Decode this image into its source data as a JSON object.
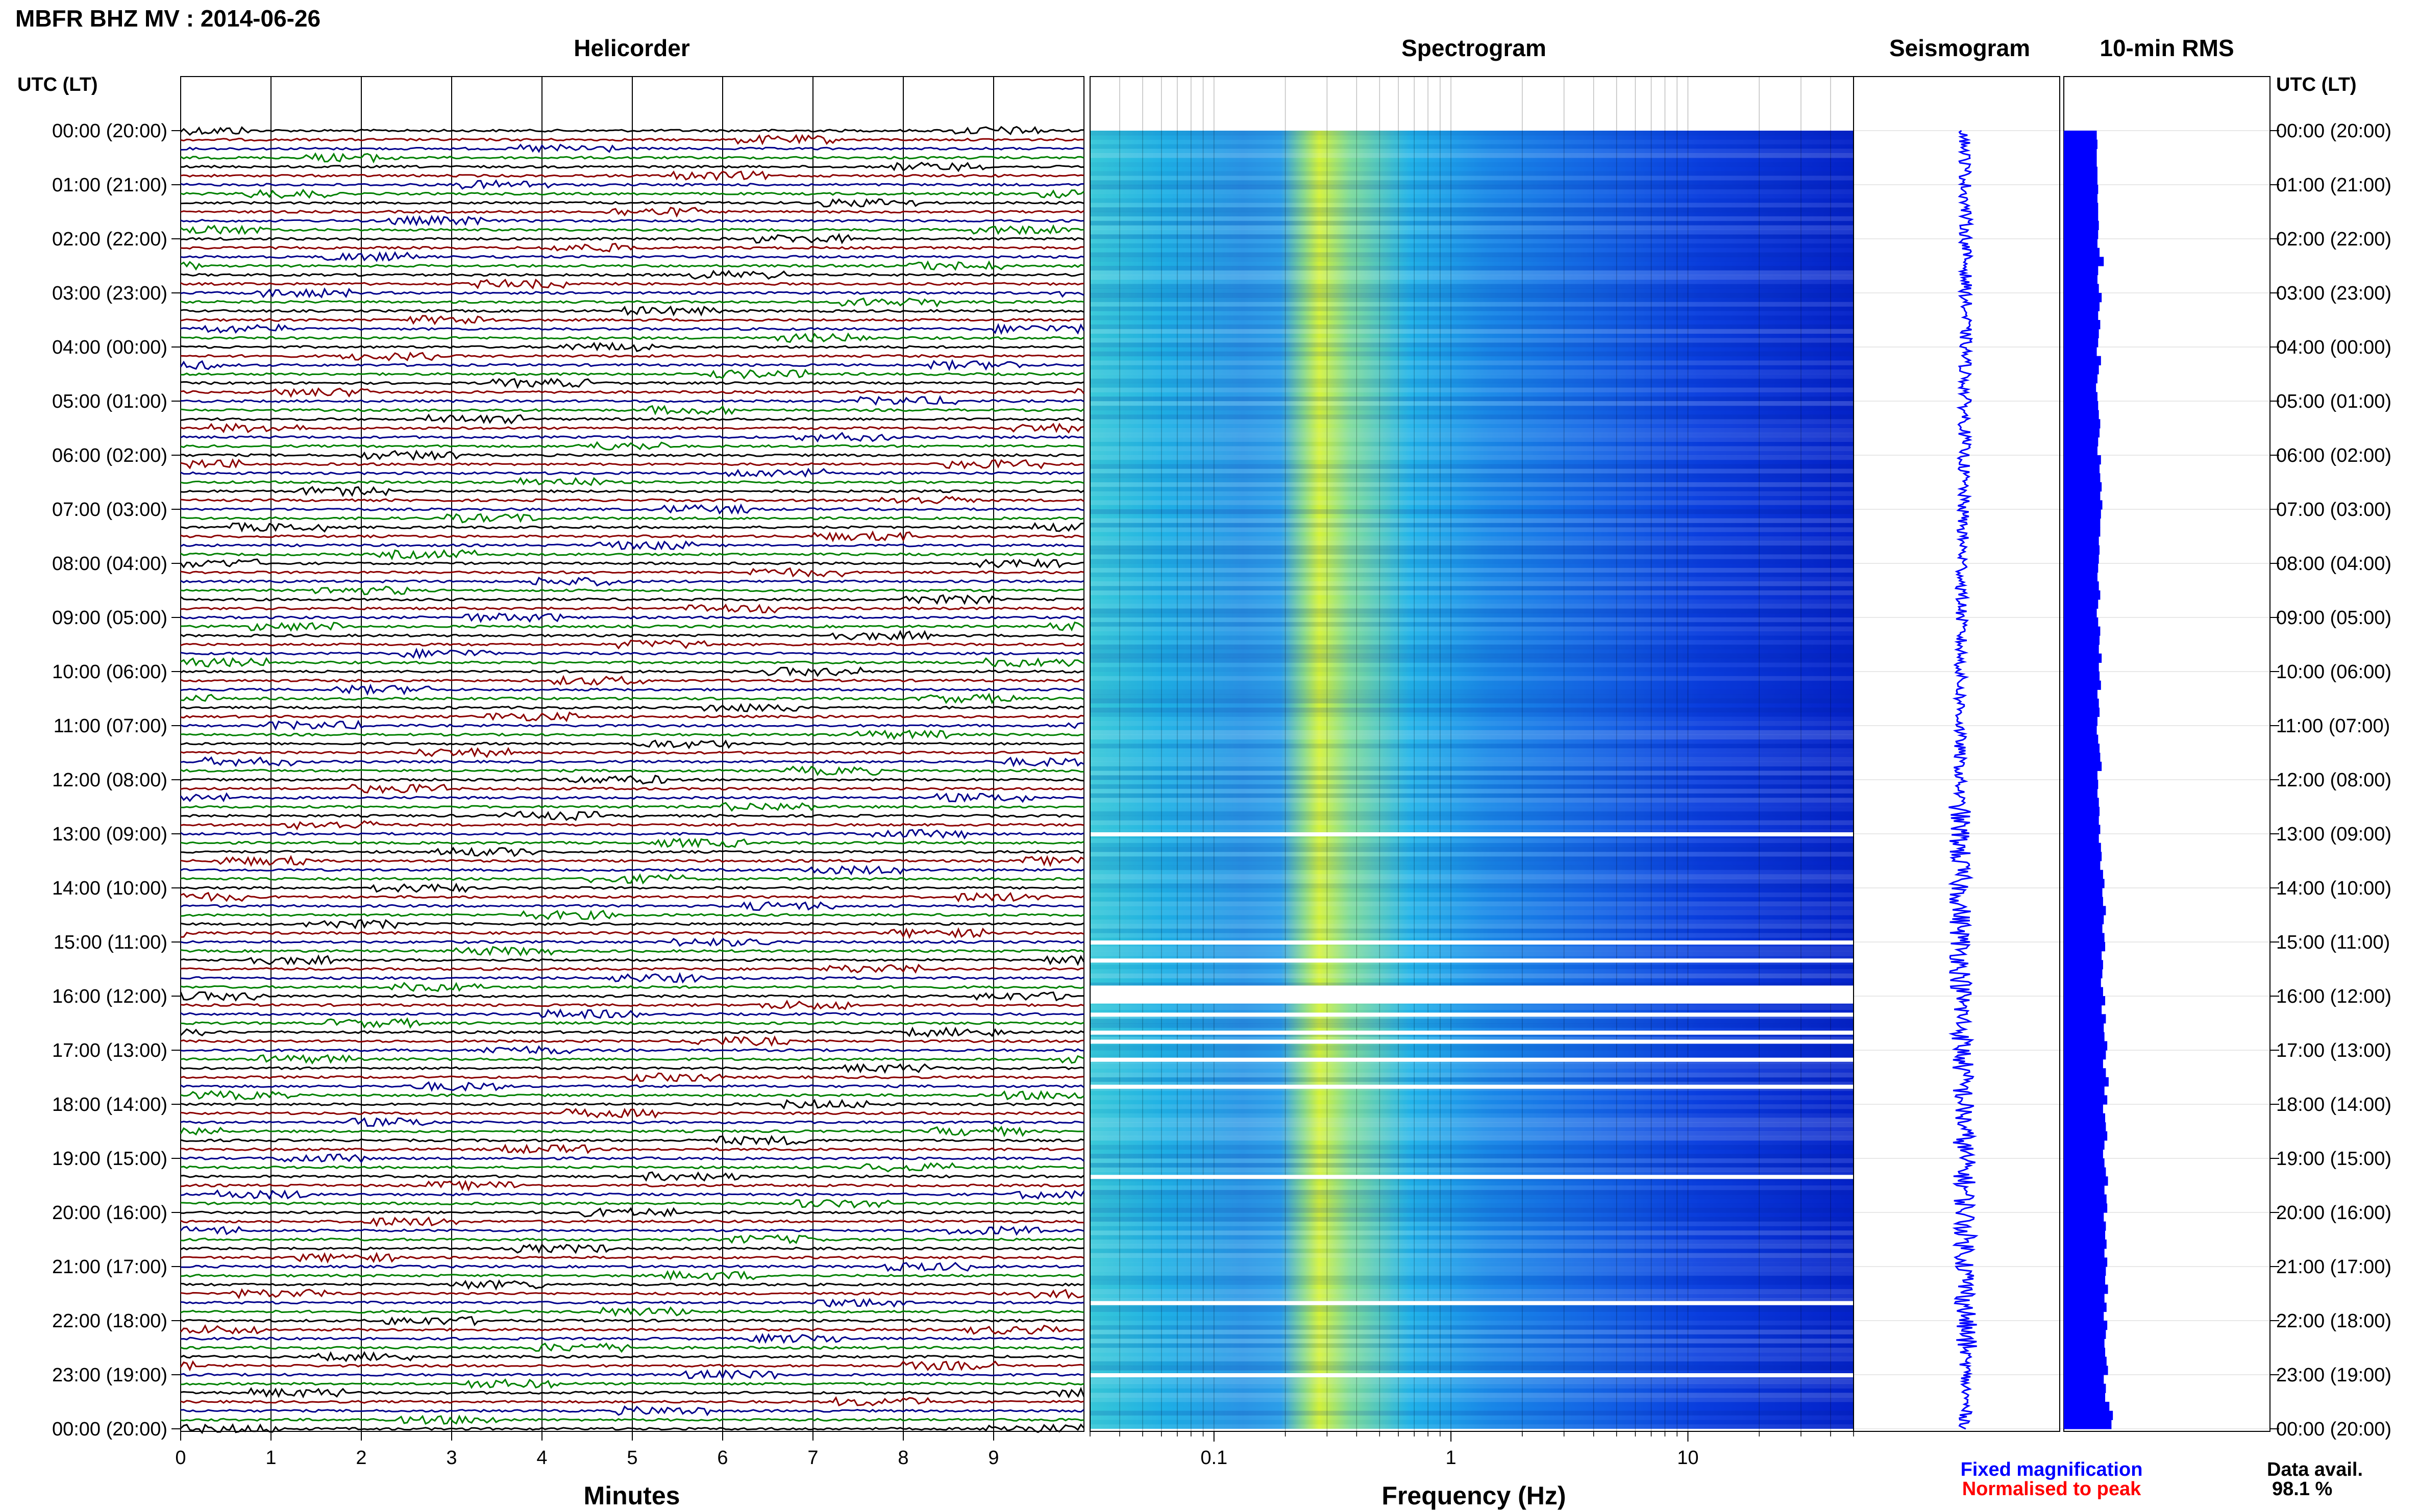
{
  "title": "MBFR BHZ MV : 2014-06-26",
  "panels": {
    "helicorder": "Helicorder",
    "spectrogram": "Spectrogram",
    "seismogram": "Seismogram",
    "rms": "10-min RMS"
  },
  "time_axis_header": "UTC (LT)",
  "time_labels": [
    "00:00 (20:00)",
    "01:00 (21:00)",
    "02:00 (22:00)",
    "03:00 (23:00)",
    "04:00 (00:00)",
    "05:00 (01:00)",
    "06:00 (02:00)",
    "07:00 (03:00)",
    "08:00 (04:00)",
    "09:00 (05:00)",
    "10:00 (06:00)",
    "11:00 (07:00)",
    "12:00 (08:00)",
    "13:00 (09:00)",
    "14:00 (10:00)",
    "15:00 (11:00)",
    "16:00 (12:00)",
    "17:00 (13:00)",
    "18:00 (14:00)",
    "19:00 (15:00)",
    "20:00 (16:00)",
    "21:00 (17:00)",
    "22:00 (18:00)",
    "23:00 (19:00)",
    "00:00 (20:00)"
  ],
  "colors": {
    "trace_black": "#000000",
    "trace_red": "#8b0000",
    "trace_blue": "#00008b",
    "trace_green": "#008000",
    "rms_fill": "#0000ff",
    "legend_fixed": "#0000ff",
    "legend_norm": "#ff0000"
  },
  "legend": {
    "fixed": "Fixed magnification",
    "normalised": "Normalised to peak"
  },
  "availability": {
    "label": "Data avail.",
    "value": "98.1 %"
  },
  "chart_data": [
    {
      "type": "line",
      "panel": "Helicorder",
      "xlabel": "Minutes",
      "xlim": [
        0,
        10
      ],
      "xticks": [
        0,
        1,
        2,
        3,
        4,
        5,
        6,
        7,
        8,
        9
      ],
      "ylim": [
        "00:00",
        "24:00"
      ],
      "lines_per_hour": 6,
      "trace_color_cycle": [
        "black",
        "red",
        "blue",
        "green"
      ]
    },
    {
      "type": "heatmap",
      "panel": "Spectrogram",
      "xlabel": "Frequency (Hz)",
      "xscale": "log",
      "xlim": [
        0.03,
        50
      ],
      "xticks": [
        0.1,
        1,
        10
      ],
      "xtick_labels": [
        "0.1",
        "1",
        "10"
      ],
      "gaps_utc": [
        "13:00",
        "15:00",
        "15:20",
        "15:50-16:10",
        "16:20",
        "16:40",
        "16:50",
        "17:10",
        "17:40",
        "19:20",
        "21:40",
        "23:00"
      ]
    },
    {
      "type": "line",
      "panel": "Seismogram",
      "ylim": [
        "00:00",
        "24:00"
      ]
    },
    {
      "type": "bar",
      "panel": "10-min RMS",
      "orientation": "horizontal",
      "bins": 144,
      "values": [
        0.47,
        0.48,
        0.47,
        0.47,
        0.48,
        0.48,
        0.49,
        0.48,
        0.49,
        0.49,
        0.5,
        0.49,
        0.48,
        0.51,
        0.57,
        0.49,
        0.48,
        0.5,
        0.54,
        0.51,
        0.49,
        0.52,
        0.5,
        0.49,
        0.47,
        0.53,
        0.5,
        0.48,
        0.46,
        0.48,
        0.49,
        0.5,
        0.52,
        0.51,
        0.49,
        0.48,
        0.53,
        0.51,
        0.52,
        0.54,
        0.52,
        0.55,
        0.53,
        0.52,
        0.52,
        0.5,
        0.51,
        0.5,
        0.49,
        0.48,
        0.5,
        0.52,
        0.49,
        0.47,
        0.49,
        0.52,
        0.51,
        0.5,
        0.54,
        0.5,
        0.51,
        0.53,
        0.48,
        0.5,
        0.51,
        0.48,
        0.47,
        0.49,
        0.51,
        0.52,
        0.54,
        0.48,
        0.49,
        0.48,
        0.5,
        0.51,
        0.5,
        0.52,
        0.5,
        0.53,
        0.54,
        0.52,
        0.56,
        0.58,
        0.55,
        0.56,
        0.6,
        0.57,
        0.55,
        0.58,
        0.59,
        0.54,
        0.56,
        0.55,
        0.53,
        0.56,
        0.59,
        0.54,
        0.6,
        0.57,
        0.58,
        0.62,
        0.6,
        0.56,
        0.6,
        0.64,
        0.58,
        0.62,
        0.56,
        0.59,
        0.6,
        0.62,
        0.58,
        0.56,
        0.58,
        0.6,
        0.63,
        0.58,
        0.61,
        0.62,
        0.57,
        0.6,
        0.59,
        0.61,
        0.58,
        0.62,
        0.6,
        0.59,
        0.63,
        0.58,
        0.61,
        0.57,
        0.62,
        0.6,
        0.58,
        0.59,
        0.61,
        0.63,
        0.57,
        0.6,
        0.59,
        0.65,
        0.7,
        0.68
      ]
    }
  ]
}
